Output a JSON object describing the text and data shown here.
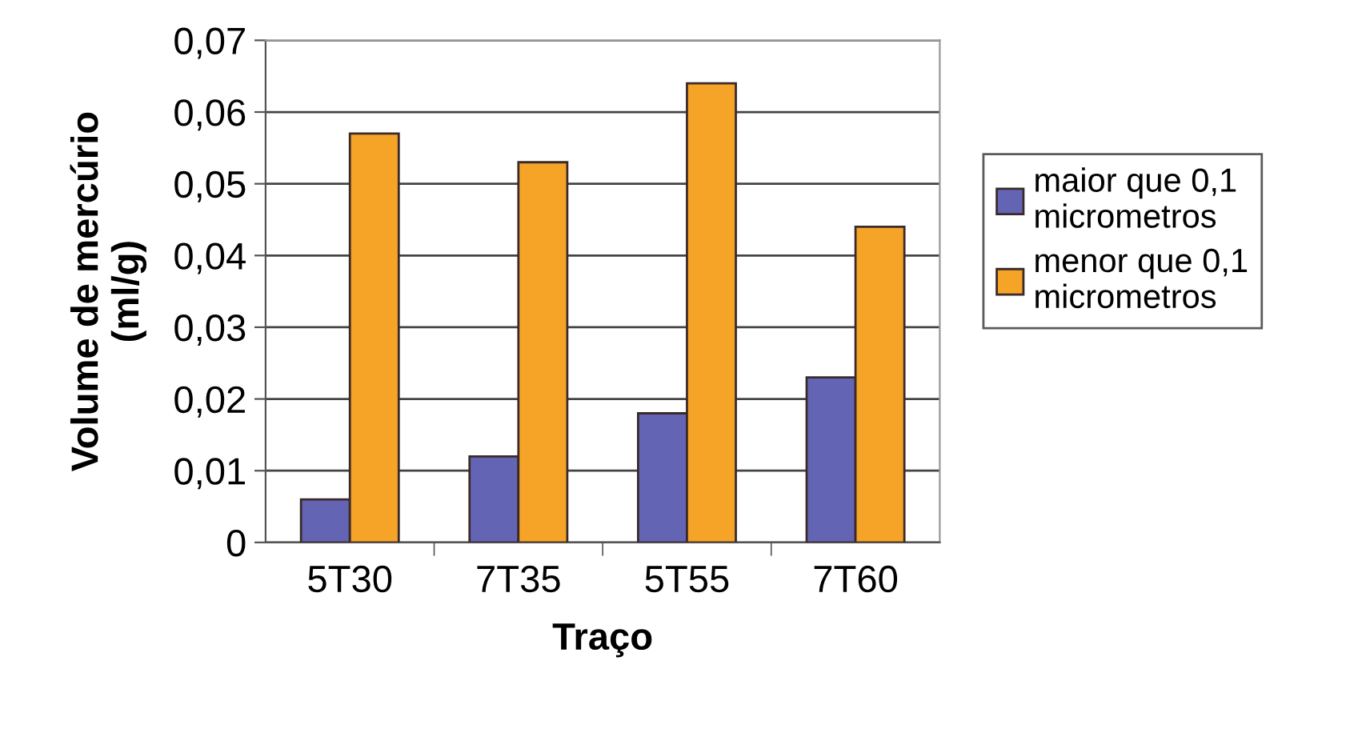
{
  "chart_data": {
    "type": "bar",
    "xlabel": "Traço",
    "ylabel": "Volume de mercúrio\n(ml/g)",
    "categories": [
      "5T30",
      "7T35",
      "5T55",
      "7T60"
    ],
    "series": [
      {
        "name": "maior que 0,1\nmicrometros",
        "color": "#6464b4",
        "values": [
          0.006,
          0.012,
          0.018,
          0.023
        ]
      },
      {
        "name": "menor que 0,1\nmicrometros",
        "color": "#f5a428",
        "values": [
          0.057,
          0.053,
          0.064,
          0.044
        ]
      }
    ],
    "ylim": [
      0,
      0.07
    ],
    "yticks": [
      {
        "value": 0,
        "label": "0"
      },
      {
        "value": 0.01,
        "label": "0,01"
      },
      {
        "value": 0.02,
        "label": "0,02"
      },
      {
        "value": 0.03,
        "label": "0,03"
      },
      {
        "value": 0.04,
        "label": "0,04"
      },
      {
        "value": 0.05,
        "label": "0,05"
      },
      {
        "value": 0.06,
        "label": "0,06"
      },
      {
        "value": 0.07,
        "label": "0,07"
      }
    ],
    "grid": "y",
    "legend": "right"
  }
}
